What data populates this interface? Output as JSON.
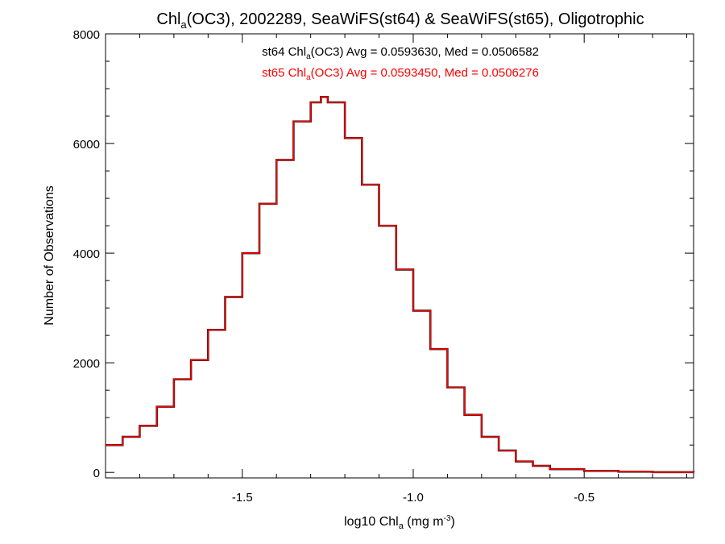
{
  "chart_data": {
    "type": "line",
    "title": {
      "prefix": "Chl",
      "sub": "a",
      "suffix": "(OC3), 2002289, SeaWiFS(st64) & SeaWiFS(st65), Oligotrophic"
    },
    "xlabel": {
      "prefix": "log10 Chl",
      "sub": "a",
      "mid": " (mg m",
      "sup": "-3",
      "suffix": ")"
    },
    "ylabel": "Number of Observations",
    "xlim": [
      -1.9,
      -0.18
    ],
    "ylim": [
      -100,
      8000
    ],
    "x_ticks": [
      -1.5,
      -1.0,
      -0.5
    ],
    "x_tick_labels": [
      "-1.5",
      "-1.0",
      "-0.5"
    ],
    "y_ticks": [
      0,
      2000,
      4000,
      6000,
      8000
    ],
    "y_tick_labels": [
      "0",
      "2000",
      "4000",
      "6000",
      "8000"
    ],
    "annotations": [
      {
        "prefix": "st64 Chl",
        "sub": "a",
        "suffix": "(OC3) Avg = 0.0593630, Med = 0.0506582",
        "color": "#000000"
      },
      {
        "prefix": "st65 Chl",
        "sub": "a",
        "suffix": "(OC3) Avg = 0.0593450, Med = 0.0506276",
        "color": "#ff0000"
      }
    ],
    "series": [
      {
        "color": "#000000",
        "style": "step",
        "points": [
          [
            -1.9,
            500
          ],
          [
            -1.85,
            650
          ],
          [
            -1.8,
            850
          ],
          [
            -1.75,
            1200
          ],
          [
            -1.7,
            1700
          ],
          [
            -1.65,
            2050
          ],
          [
            -1.6,
            2600
          ],
          [
            -1.55,
            3200
          ],
          [
            -1.5,
            4000
          ],
          [
            -1.45,
            4900
          ],
          [
            -1.4,
            5700
          ],
          [
            -1.35,
            6400
          ],
          [
            -1.3,
            6750
          ],
          [
            -1.27,
            6850
          ],
          [
            -1.25,
            6750
          ],
          [
            -1.2,
            6100
          ],
          [
            -1.15,
            5250
          ],
          [
            -1.1,
            4500
          ],
          [
            -1.05,
            3700
          ],
          [
            -1.0,
            2950
          ],
          [
            -0.95,
            2250
          ],
          [
            -0.9,
            1550
          ],
          [
            -0.85,
            1050
          ],
          [
            -0.8,
            650
          ],
          [
            -0.75,
            400
          ],
          [
            -0.7,
            200
          ],
          [
            -0.65,
            120
          ],
          [
            -0.6,
            60
          ],
          [
            -0.5,
            30
          ],
          [
            -0.4,
            15
          ],
          [
            -0.3,
            5
          ],
          [
            -0.18,
            0
          ]
        ]
      },
      {
        "color": "#ff0000",
        "style": "step",
        "points": [
          [
            -1.9,
            500
          ],
          [
            -1.85,
            650
          ],
          [
            -1.8,
            850
          ],
          [
            -1.75,
            1200
          ],
          [
            -1.7,
            1700
          ],
          [
            -1.65,
            2050
          ],
          [
            -1.6,
            2600
          ],
          [
            -1.55,
            3200
          ],
          [
            -1.5,
            4000
          ],
          [
            -1.45,
            4900
          ],
          [
            -1.4,
            5700
          ],
          [
            -1.35,
            6400
          ],
          [
            -1.3,
            6750
          ],
          [
            -1.27,
            6850
          ],
          [
            -1.25,
            6750
          ],
          [
            -1.2,
            6100
          ],
          [
            -1.15,
            5250
          ],
          [
            -1.1,
            4500
          ],
          [
            -1.05,
            3700
          ],
          [
            -1.0,
            2950
          ],
          [
            -0.95,
            2250
          ],
          [
            -0.9,
            1550
          ],
          [
            -0.85,
            1050
          ],
          [
            -0.8,
            650
          ],
          [
            -0.75,
            400
          ],
          [
            -0.7,
            200
          ],
          [
            -0.65,
            120
          ],
          [
            -0.6,
            60
          ],
          [
            -0.5,
            30
          ],
          [
            -0.4,
            15
          ],
          [
            -0.3,
            5
          ],
          [
            -0.18,
            0
          ]
        ]
      }
    ]
  }
}
